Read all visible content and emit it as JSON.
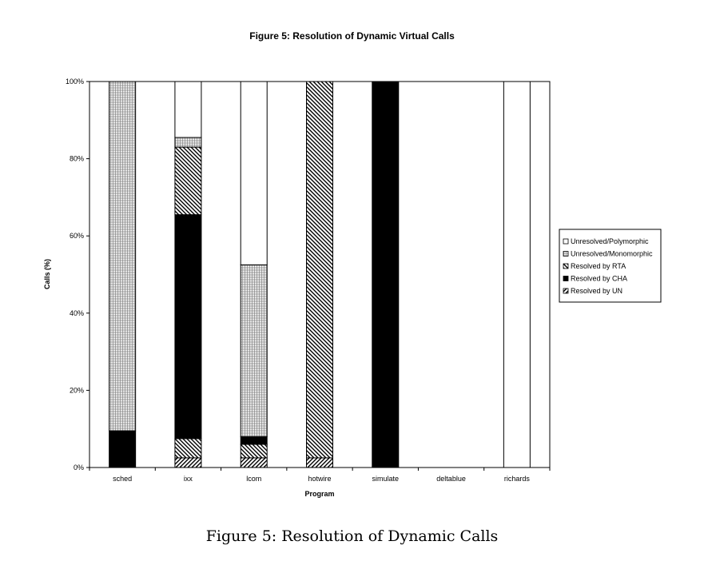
{
  "figure_caption": "Figure 5: Resolution of Dynamic Calls",
  "chart_data": {
    "type": "bar",
    "stacked": true,
    "title": "Figure 5: Resolution of Dynamic Virtual Calls",
    "xlabel": "Program",
    "ylabel": "Calls (%)",
    "ylim": [
      0,
      100
    ],
    "yticks": [
      "0%",
      "20%",
      "40%",
      "60%",
      "80%",
      "100%"
    ],
    "categories": [
      "sched",
      "ixx",
      "lcom",
      "hotwire",
      "simulate",
      "deltablue",
      "richards"
    ],
    "series": [
      {
        "name": "Resolved by UN",
        "pattern": "diag-fwd",
        "values": [
          0,
          2.5,
          2.5,
          2.5,
          0,
          0,
          0
        ]
      },
      {
        "name": "Resolved by CHA",
        "pattern": "solid",
        "values": [
          9.5,
          0,
          0,
          0,
          100,
          0,
          0
        ]
      },
      {
        "name": "Resolved by RTA",
        "pattern": "diag-back",
        "values": [
          0,
          5,
          3.5,
          97.5,
          0,
          0,
          0
        ]
      },
      {
        "name": "Resolved by CHA",
        "pattern": "solid",
        "values": [
          0,
          58,
          2,
          0,
          0,
          0,
          0
        ]
      },
      {
        "name": "Resolved by RTA",
        "pattern": "diag-back",
        "values": [
          0,
          17.5,
          0,
          0,
          0,
          0,
          0
        ]
      },
      {
        "name": "Unresolved/Monomorphic",
        "pattern": "grid",
        "values": [
          90.5,
          2.5,
          44.5,
          0,
          0,
          0,
          0
        ]
      },
      {
        "name": "Unresolved/Polymorphic",
        "pattern": "white",
        "values": [
          0,
          14.5,
          47.5,
          0,
          0,
          0,
          100
        ]
      }
    ],
    "legend": {
      "position": "right",
      "entries": [
        {
          "label": "Unresolved/Polymorphic",
          "pattern": "white"
        },
        {
          "label": "Unresolved/Monomorphic",
          "pattern": "grid"
        },
        {
          "label": "Resolved by RTA",
          "pattern": "diag-back"
        },
        {
          "label": "Resolved by CHA",
          "pattern": "solid"
        },
        {
          "label": "Resolved by UN",
          "pattern": "diag-fwd"
        }
      ]
    },
    "colors": {
      "ink": "#000000",
      "grid_fill": "#c8c8c8",
      "background": "#ffffff"
    }
  }
}
